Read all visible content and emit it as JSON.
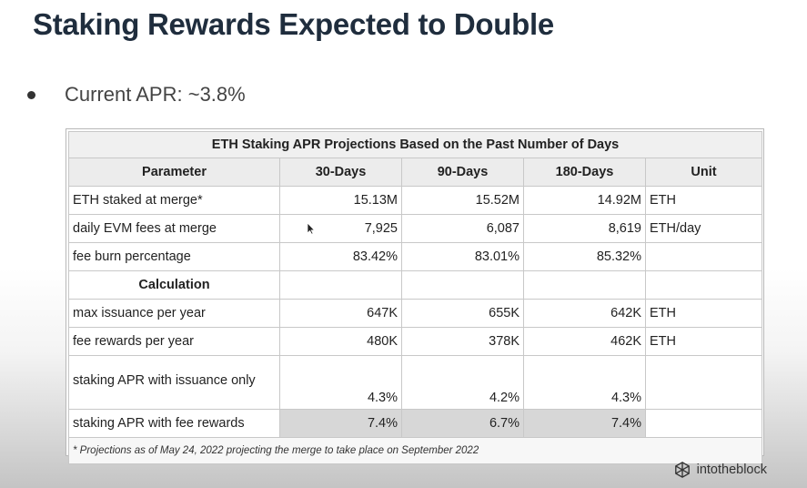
{
  "slide": {
    "title": "Staking Rewards Expected to Double",
    "bullet": "Current APR: ~3.8%"
  },
  "table": {
    "title": "ETH Staking APR Projections Based on the Past Number of Days",
    "headers": [
      "Parameter",
      "30-Days",
      "90-Days",
      "180-Days",
      "Unit"
    ],
    "rows": [
      {
        "param": "ETH staked at merge*",
        "d30": "15.13M",
        "d90": "15.52M",
        "d180": "14.92M",
        "unit": "ETH"
      },
      {
        "param": "daily EVM fees at merge",
        "d30": "7,925",
        "d90": "6,087",
        "d180": "8,619",
        "unit": "ETH/day"
      },
      {
        "param": "fee burn percentage",
        "d30": "83.42%",
        "d90": "83.01%",
        "d180": "85.32%",
        "unit": ""
      }
    ],
    "section_label": "Calculation",
    "calc_rows": [
      {
        "param": "max issuance per year",
        "d30": "647K",
        "d90": "655K",
        "d180": "642K",
        "unit": "ETH"
      },
      {
        "param": "fee rewards per year",
        "d30": "480K",
        "d90": "378K",
        "d180": "462K",
        "unit": "ETH"
      },
      {
        "param": "staking APR with issuance only",
        "d30": "4.3%",
        "d90": "4.2%",
        "d180": "4.3%",
        "unit": ""
      },
      {
        "param": "staking APR with fee rewards",
        "d30": "7.4%",
        "d90": "6.7%",
        "d180": "7.4%",
        "unit": ""
      }
    ],
    "footnote": "* Projections as of May 24, 2022 projecting the merge to take place on September 2022"
  },
  "brand": {
    "name": "intotheblock",
    "icon": "intotheblock-logo-icon"
  },
  "cursor": {
    "icon": "mouse-pointer-icon"
  }
}
